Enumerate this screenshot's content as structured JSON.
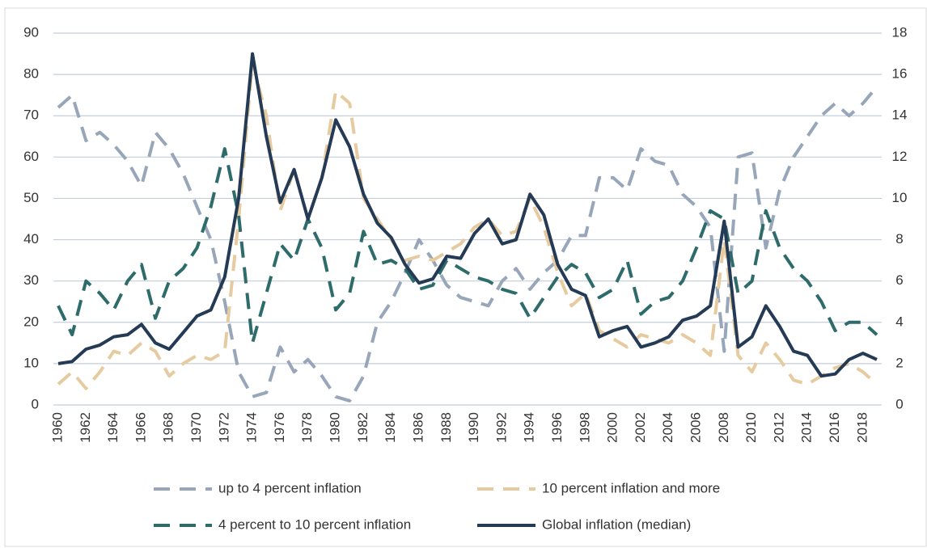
{
  "chart_data": {
    "type": "line",
    "categories": [
      "1960",
      null,
      "1962",
      null,
      "1964",
      null,
      "1966",
      null,
      "1968",
      null,
      "1970",
      null,
      "1972",
      null,
      "1974",
      null,
      "1976",
      null,
      "1978",
      null,
      "1980",
      null,
      "1982",
      null,
      "1984",
      null,
      "1986",
      null,
      "1988",
      null,
      "1990",
      null,
      "1992",
      null,
      "1994",
      null,
      "1996",
      null,
      "1998",
      null,
      "2000",
      null,
      "2002",
      null,
      "2004",
      null,
      "2006",
      null,
      "2008",
      null,
      "2010",
      null,
      "2012",
      null,
      "2014",
      null,
      "2016",
      null,
      "2018",
      null
    ],
    "series": [
      {
        "name": "up to 4 percent inflation",
        "color": "#97a6b8",
        "dash": true,
        "values": [
          72,
          75,
          64,
          66,
          63,
          59,
          53,
          66,
          62,
          56,
          48,
          40,
          25,
          8,
          2,
          3,
          14,
          8,
          11,
          7,
          2,
          1,
          7,
          20,
          25,
          32,
          40,
          35,
          29,
          26,
          25,
          24,
          30,
          33,
          28,
          32,
          35,
          41,
          41,
          55,
          55,
          52,
          62,
          59,
          58,
          51,
          48,
          43,
          13,
          60,
          61,
          38,
          52,
          60,
          65,
          70,
          73,
          70,
          73,
          77
        ]
      },
      {
        "name": "10 percent inflation and more",
        "color": "#e6cba0",
        "dash": true,
        "values": [
          5,
          8,
          4,
          8,
          13,
          12,
          15,
          13,
          7,
          10,
          12,
          11,
          13,
          45,
          83,
          70,
          47,
          57,
          45,
          55,
          76,
          73,
          50,
          45,
          40,
          35,
          36,
          35,
          37,
          39,
          43,
          45,
          41,
          42,
          50,
          43,
          32,
          24,
          27,
          18,
          16,
          14,
          17,
          16,
          15,
          17,
          15,
          12,
          40,
          12,
          8,
          15,
          11,
          6,
          5,
          7,
          9,
          10,
          8,
          5
        ]
      },
      {
        "name": "4 percent to 10 percent inflation",
        "color": "#2e6b6b",
        "dash": true,
        "values": [
          24,
          17,
          30,
          27,
          23,
          30,
          34,
          21,
          30,
          33,
          38,
          48,
          62,
          46,
          15,
          27,
          39,
          35,
          45,
          38,
          23,
          27,
          42,
          34,
          35,
          33,
          28,
          29,
          35,
          33,
          31,
          30,
          28,
          27,
          21,
          26,
          31,
          34,
          32,
          26,
          28,
          35,
          22,
          25,
          26,
          30,
          38,
          47,
          45,
          27,
          30,
          47,
          38,
          33,
          30,
          25,
          18,
          20,
          20,
          17
        ]
      },
      {
        "name": "Global inflation (median)",
        "color": "#243a55",
        "dash": false,
        "axis": "y2",
        "values": [
          2.0,
          2.1,
          2.7,
          2.9,
          3.3,
          3.4,
          3.9,
          3.0,
          2.7,
          3.5,
          4.3,
          4.6,
          6.2,
          10,
          17,
          13,
          9.8,
          11.4,
          9.0,
          11,
          13.8,
          12.5,
          10.2,
          8.8,
          8.1,
          6.8,
          5.9,
          6.1,
          7.2,
          7.1,
          8.3,
          9.0,
          7.8,
          8.0,
          10.2,
          9.2,
          6.8,
          5.6,
          5.3,
          3.3,
          3.6,
          3.8,
          2.8,
          3.0,
          3.3,
          4.1,
          4.3,
          4.8,
          8.9,
          2.8,
          3.3,
          4.8,
          3.8,
          2.6,
          2.4,
          1.4,
          1.5,
          2.2,
          2.5,
          2.2
        ]
      }
    ],
    "ylim": [
      0,
      90
    ],
    "yticks": [
      0,
      10,
      20,
      30,
      40,
      50,
      60,
      70,
      80,
      90
    ],
    "y2lim": [
      0,
      18
    ],
    "y2ticks": [
      0,
      2,
      4,
      6,
      8,
      10,
      12,
      14,
      16,
      18
    ],
    "grid": true
  }
}
